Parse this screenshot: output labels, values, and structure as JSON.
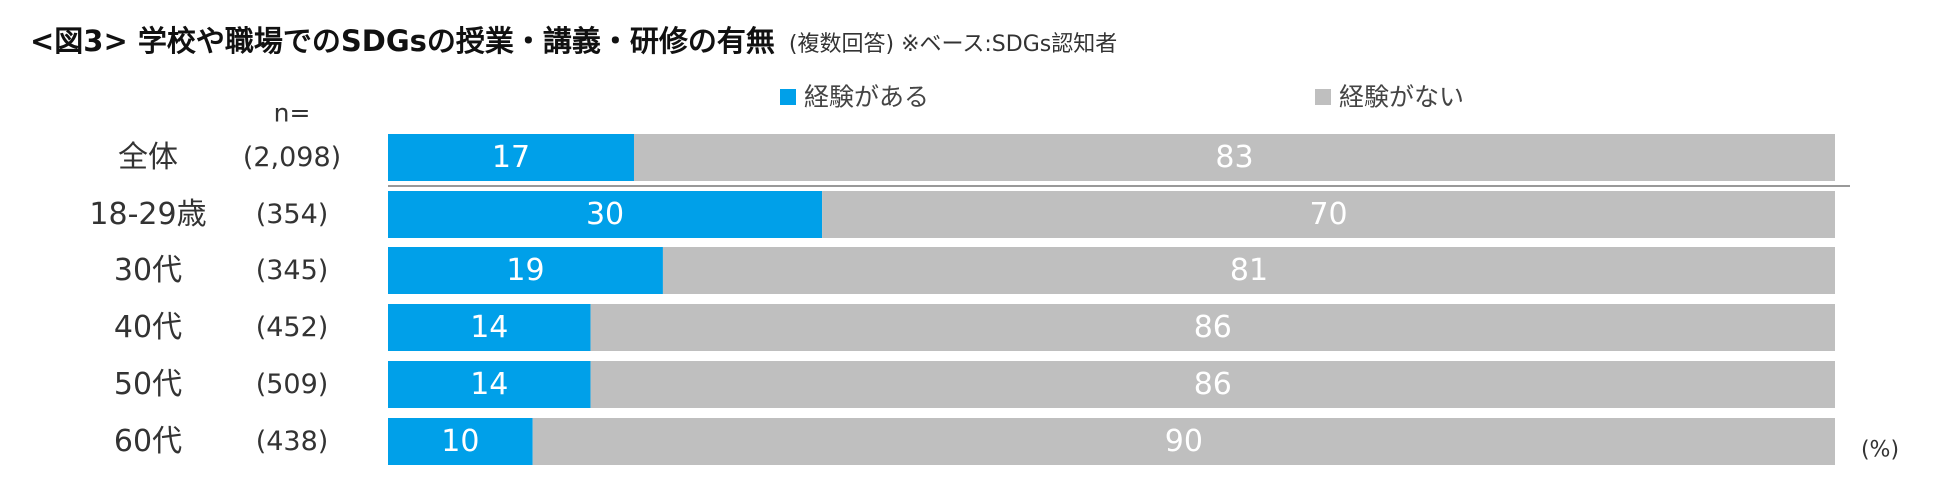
{
  "title": "<図3> 学校や職場でのSDGsの授業・講義・研修の有無",
  "subtitle": "(複数回答) ※ベース:SDGs認知者",
  "n_header": "n=",
  "unit_label": "(%)",
  "colors": {
    "has": "#00A0E9",
    "none": "#BFBFBF",
    "label_text": "#ffffff",
    "separator": "#999999"
  },
  "chart_data": {
    "type": "bar",
    "orientation": "horizontal",
    "stacked": true,
    "categories": [
      "全体",
      "18-29歳",
      "30代",
      "40代",
      "50代",
      "60代"
    ],
    "n": [
      "(2,098)",
      "(354)",
      "(345)",
      "(452)",
      "(509)",
      "(438)"
    ],
    "series": [
      {
        "name": "経験がある",
        "values": [
          17,
          30,
          19,
          14,
          14,
          10
        ]
      },
      {
        "name": "経験がない",
        "values": [
          83,
          70,
          81,
          86,
          86,
          90
        ]
      }
    ],
    "xlim": [
      0,
      100
    ],
    "legend": "top"
  }
}
